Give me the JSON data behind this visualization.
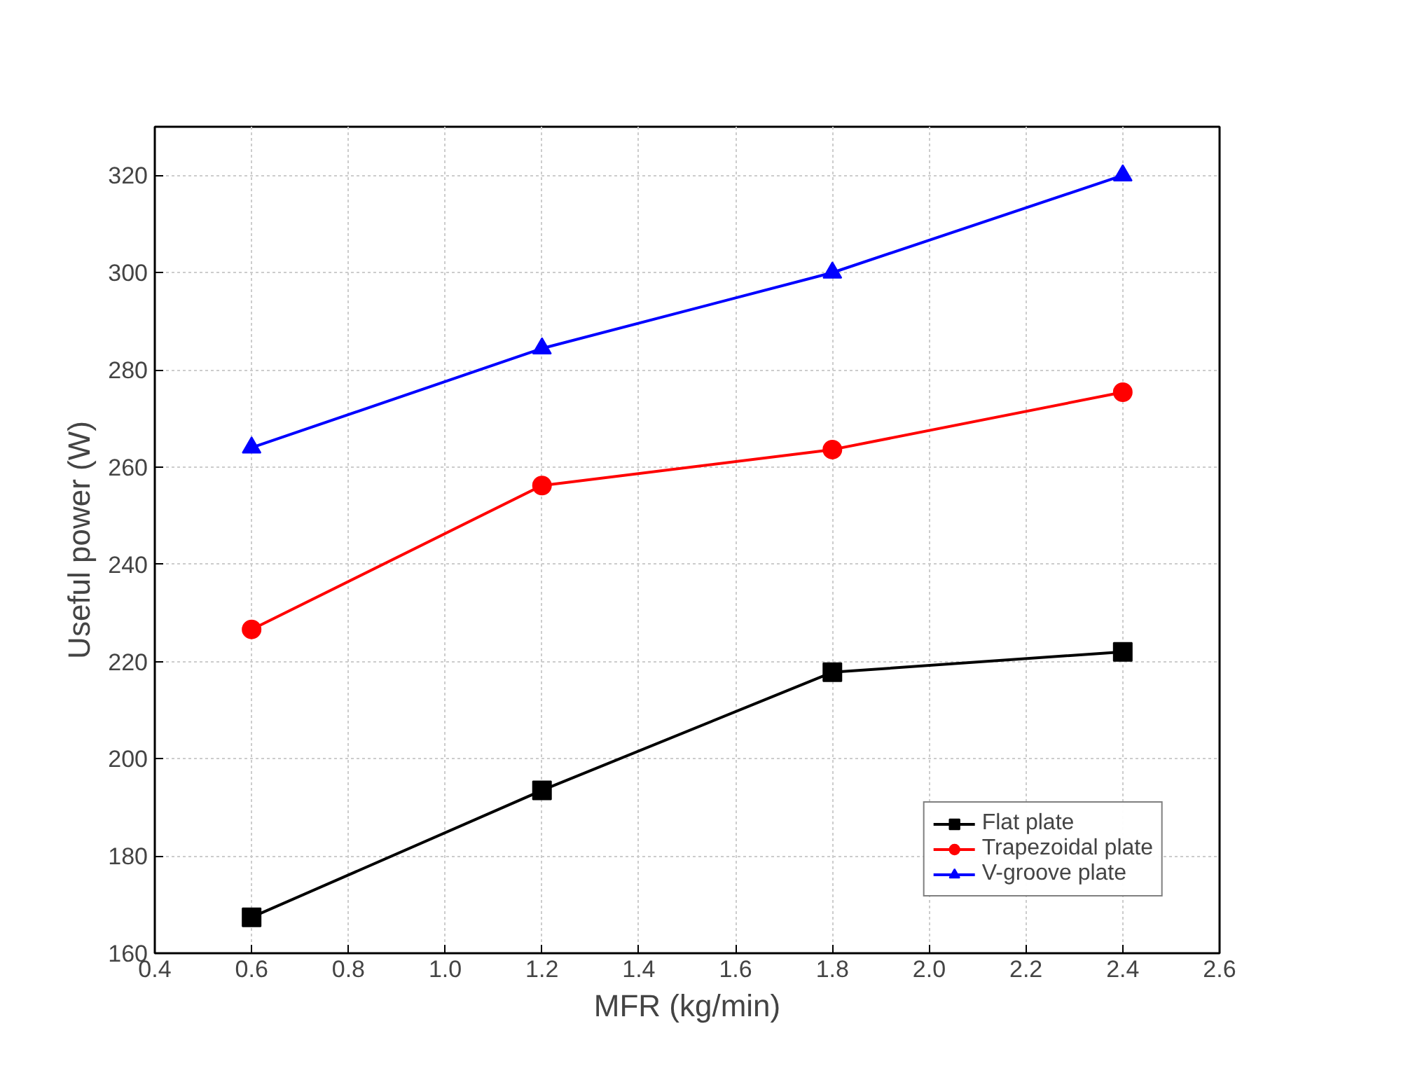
{
  "chart_data": {
    "type": "line",
    "xlabel": "MFR (kg/min)",
    "ylabel": "Useful power (W)",
    "x": [
      0.6,
      1.2,
      1.8,
      2.4
    ],
    "series": [
      {
        "name": "Flat plate",
        "color": "#000000",
        "marker": "square",
        "values": [
          167.4,
          193.5,
          217.8,
          222
        ]
      },
      {
        "name": "Trapezoidal plate",
        "color": "#ff0000",
        "marker": "circle",
        "values": [
          226.6,
          256.2,
          263.6,
          275.4
        ]
      },
      {
        "name": "V-groove plate",
        "color": "#0000ff",
        "marker": "triangle",
        "values": [
          264,
          284.4,
          300,
          320
        ]
      }
    ],
    "xlim": [
      0.4,
      2.6
    ],
    "xticks": [
      0.4,
      0.6,
      0.8,
      {
        "value": 1,
        "label": "1.0"
      },
      1.2,
      1.4,
      1.6,
      1.8,
      {
        "value": 2,
        "label": "2.0"
      },
      2.2,
      2.4,
      2.6
    ],
    "ylim": [
      160,
      330
    ],
    "yticks": [
      160,
      180,
      200,
      220,
      240,
      260,
      280,
      300,
      320
    ],
    "grid": true,
    "legend": "bottom right",
    "line_style": "solid"
  }
}
